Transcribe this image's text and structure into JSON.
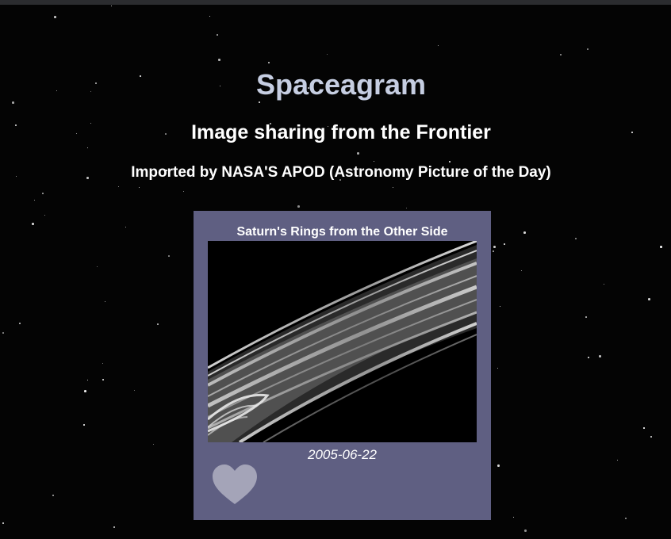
{
  "header": {
    "title": "Spaceagram",
    "subtitle": "Image sharing from the Frontier",
    "credit": "Imported by NASA'S APOD (Astronomy Picture of the Day)"
  },
  "post": {
    "title": "Saturn's Rings from the Other Side",
    "date": "2005-06-22",
    "image_icon": "saturn-rings-photo",
    "like_icon": "heart-icon",
    "like_color": "#a4a4b8"
  },
  "colors": {
    "background": "#040404",
    "title": "#c6cee2",
    "card": "#5f5f82"
  }
}
